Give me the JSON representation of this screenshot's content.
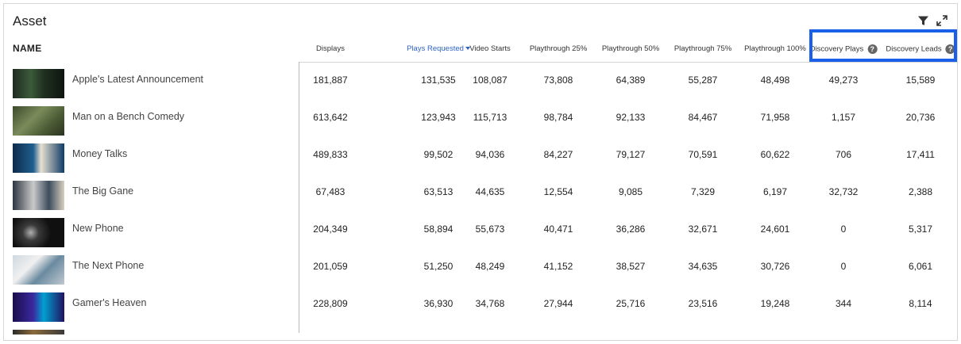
{
  "panel": {
    "title": "Asset",
    "name_header": "NAME"
  },
  "tools": {
    "filter_icon": "funnel-icon",
    "expand_icon": "expand-icon"
  },
  "columns": [
    {
      "label": "Displays",
      "active": false,
      "help": false
    },
    {
      "label": "Plays Requested",
      "active": true,
      "help": false,
      "sort": "descending"
    },
    {
      "label": "Video Starts",
      "active": false,
      "help": false
    },
    {
      "label": "Playthrough 25%",
      "active": false,
      "help": false
    },
    {
      "label": "Playthrough 50%",
      "active": false,
      "help": false
    },
    {
      "label": "Playthrough 75%",
      "active": false,
      "help": false
    },
    {
      "label": "Playthrough 100%",
      "active": false,
      "help": false
    },
    {
      "label": "Discovery Plays",
      "active": false,
      "help": true
    },
    {
      "label": "Discovery Leads",
      "active": false,
      "help": true
    }
  ],
  "help_glyph": "?",
  "colors": {
    "accent": "#2f63c7",
    "highlight_box": "#1a5fe8"
  },
  "rows": [
    {
      "name": "Apple's Latest Announcement",
      "values": [
        "181,887",
        "131,535",
        "108,087",
        "73,808",
        "64,389",
        "55,287",
        "48,498",
        "49,273",
        "15,589"
      ]
    },
    {
      "name": "Man on a Bench Comedy",
      "values": [
        "613,642",
        "123,943",
        "115,713",
        "98,784",
        "92,133",
        "84,467",
        "71,958",
        "1,157",
        "20,736"
      ]
    },
    {
      "name": "Money Talks",
      "values": [
        "489,833",
        "99,502",
        "94,036",
        "84,227",
        "79,127",
        "70,591",
        "60,622",
        "706",
        "17,411"
      ]
    },
    {
      "name": "The Big Gane",
      "values": [
        "67,483",
        "63,513",
        "44,635",
        "12,554",
        "9,085",
        "7,329",
        "6,197",
        "32,732",
        "2,388"
      ]
    },
    {
      "name": "New Phone",
      "values": [
        "204,349",
        "58,894",
        "55,673",
        "40,471",
        "36,286",
        "32,671",
        "24,601",
        "0",
        "5,317"
      ]
    },
    {
      "name": "The Next Phone",
      "values": [
        "201,059",
        "51,250",
        "48,249",
        "41,152",
        "38,527",
        "34,635",
        "30,726",
        "0",
        "6,061"
      ]
    },
    {
      "name": "Gamer's Heaven",
      "values": [
        "228,809",
        "36,930",
        "34,768",
        "27,944",
        "25,716",
        "23,516",
        "19,248",
        "344",
        "8,114"
      ]
    }
  ]
}
